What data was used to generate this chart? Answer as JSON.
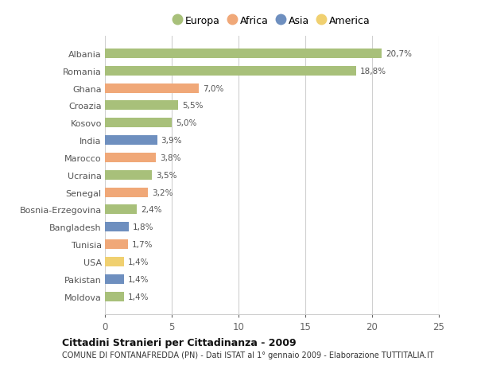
{
  "categories": [
    "Albania",
    "Romania",
    "Ghana",
    "Croazia",
    "Kosovo",
    "India",
    "Marocco",
    "Ucraina",
    "Senegal",
    "Bosnia-Erzegovina",
    "Bangladesh",
    "Tunisia",
    "USA",
    "Pakistan",
    "Moldova"
  ],
  "values": [
    20.7,
    18.8,
    7.0,
    5.5,
    5.0,
    3.9,
    3.8,
    3.5,
    3.2,
    2.4,
    1.8,
    1.7,
    1.4,
    1.4,
    1.4
  ],
  "labels": [
    "20,7%",
    "18,8%",
    "7,0%",
    "5,5%",
    "5,0%",
    "3,9%",
    "3,8%",
    "3,5%",
    "3,2%",
    "2,4%",
    "1,8%",
    "1,7%",
    "1,4%",
    "1,4%",
    "1,4%"
  ],
  "bar_colors": [
    "#a8c07a",
    "#a8c07a",
    "#f0a878",
    "#a8c07a",
    "#a8c07a",
    "#6e8fbf",
    "#f0a878",
    "#a8c07a",
    "#f0a878",
    "#a8c07a",
    "#6e8fbf",
    "#f0a878",
    "#f0d070",
    "#6e8fbf",
    "#a8c07a"
  ],
  "continent_labels": [
    "Europa",
    "Africa",
    "Asia",
    "America"
  ],
  "continent_colors": [
    "#a8c07a",
    "#f0a878",
    "#6e8fbf",
    "#f0d070"
  ],
  "title1": "Cittadini Stranieri per Cittadinanza - 2009",
  "title2": "COMUNE DI FONTANAFREDDA (PN) - Dati ISTAT al 1° gennaio 2009 - Elaborazione TUTTITALIA.IT",
  "xlim": [
    0,
    25
  ],
  "xticks": [
    0,
    5,
    10,
    15,
    20,
    25
  ],
  "background_color": "#ffffff",
  "grid_color": "#d0d0d0"
}
